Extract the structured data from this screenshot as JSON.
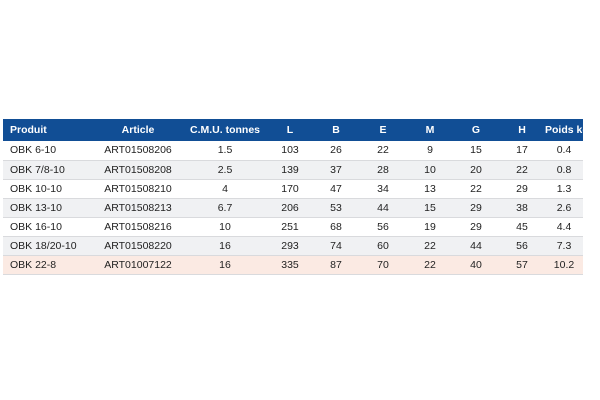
{
  "table": {
    "headers": [
      "Produit",
      "Article",
      "C.M.U. tonnes",
      "L",
      "B",
      "E",
      "M",
      "G",
      "H",
      "Poids kg"
    ],
    "rows": [
      [
        "OBK 6-10",
        "ART01508206",
        "1.5",
        "103",
        "26",
        "22",
        "9",
        "15",
        "17",
        "0.4"
      ],
      [
        "OBK 7/8-10",
        "ART01508208",
        "2.5",
        "139",
        "37",
        "28",
        "10",
        "20",
        "22",
        "0.8"
      ],
      [
        "OBK 10-10",
        "ART01508210",
        "4",
        "170",
        "47",
        "34",
        "13",
        "22",
        "29",
        "1.3"
      ],
      [
        "OBK 13-10",
        "ART01508213",
        "6.7",
        "206",
        "53",
        "44",
        "15",
        "29",
        "38",
        "2.6"
      ],
      [
        "OBK 16-10",
        "ART01508216",
        "10",
        "251",
        "68",
        "56",
        "19",
        "29",
        "45",
        "4.4"
      ],
      [
        "OBK 18/20-10",
        "ART01508220",
        "16",
        "293",
        "74",
        "60",
        "22",
        "44",
        "56",
        "7.3"
      ],
      [
        "OBK 22-8",
        "ART01007122",
        "16",
        "335",
        "87",
        "70",
        "22",
        "40",
        "57",
        "10.2"
      ]
    ],
    "highlighted_row_index": 6,
    "colors": {
      "header_background": "#114e95",
      "header_text": "#ffffff",
      "row_stripe": "#f0f1f3",
      "row_highlight": "#fbeae3"
    }
  }
}
